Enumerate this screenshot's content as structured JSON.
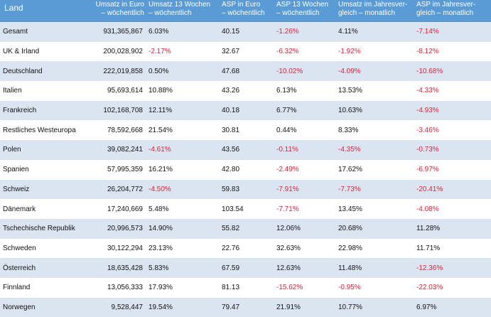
{
  "header": {
    "land": "Land",
    "umsatz": "Umsatz in Euro\n– wöchentlich",
    "umsatz13": "Umsatz 13 Wochen\n– wöchentlich",
    "asp": "ASP in Euro\n– wöchentlich",
    "asp13": "ASP 13 Wochen\n– wöchentlich",
    "umsatz_jv": "Umsatz im Jahresver-\ngleich – monatlich",
    "asp_jv": "ASP im Jahresver-\ngleich – monatlich"
  },
  "colors": {
    "header_bg": "#5b9bd5",
    "band": "#dbe5f1",
    "negative": "#e0203a"
  },
  "rows": [
    {
      "land": "Gesamt",
      "umsatz": "931,365,867",
      "umsatz13": "6.03%",
      "asp": "40.15",
      "asp13": "-1.26%",
      "umsatz_jv": "4.11%",
      "asp_jv": "-7.14%"
    },
    {
      "land": "UK & Irland",
      "umsatz": "200,028,902",
      "umsatz13": "-2.17%",
      "asp": "32.67",
      "asp13": "-6.32%",
      "umsatz_jv": "-1.92%",
      "asp_jv": "-8.12%"
    },
    {
      "land": "Deutschland",
      "umsatz": "222,019,858",
      "umsatz13": "0.50%",
      "asp": "47.68",
      "asp13": "-10.02%",
      "umsatz_jv": "-4.09%",
      "asp_jv": "-10.68%"
    },
    {
      "land": "Italien",
      "umsatz": "95,693,614",
      "umsatz13": "10.88%",
      "asp": "43.26",
      "asp13": "6.13%",
      "umsatz_jv": "13.53%",
      "asp_jv": "-4.33%"
    },
    {
      "land": "Frankreich",
      "umsatz": "102,168,708",
      "umsatz13": "12.11%",
      "asp": "40.18",
      "asp13": "6.77%",
      "umsatz_jv": "10.63%",
      "asp_jv": "-4.93%"
    },
    {
      "land": "Restliches Westeuropa",
      "umsatz": "78,592,668",
      "umsatz13": "21.54%",
      "asp": "30.81",
      "asp13": "0.44%",
      "umsatz_jv": "8.33%",
      "asp_jv": "-3.46%"
    },
    {
      "land": "Polen",
      "umsatz": "39,082,241",
      "umsatz13": "-4.61%",
      "asp": "43.56",
      "asp13": "-0.11%",
      "umsatz_jv": "-4.35%",
      "asp_jv": "-0.73%"
    },
    {
      "land": "Spanien",
      "umsatz": "57,995,359",
      "umsatz13": "16.21%",
      "asp": "42.80",
      "asp13": "-2.49%",
      "umsatz_jv": "17.62%",
      "asp_jv": "-6.97%"
    },
    {
      "land": "Schweiz",
      "umsatz": "26,204,772",
      "umsatz13": "-4.50%",
      "asp": "59.83",
      "asp13": "-7.91%",
      "umsatz_jv": "-7.73%",
      "asp_jv": "-20.41%"
    },
    {
      "land": "Dänemark",
      "umsatz": "17,240,669",
      "umsatz13": "5.48%",
      "asp": "103.54",
      "asp13": "-7.71%",
      "umsatz_jv": "13.45%",
      "asp_jv": "-4.08%"
    },
    {
      "land": "Tschechische Republik",
      "umsatz": "20,996,573",
      "umsatz13": "14.90%",
      "asp": "55.82",
      "asp13": "12.06%",
      "umsatz_jv": "20.68%",
      "asp_jv": "11.28%"
    },
    {
      "land": "Schweden",
      "umsatz": "30,122,294",
      "umsatz13": "23.13%",
      "asp": "22.76",
      "asp13": "32.63%",
      "umsatz_jv": "22.98%",
      "asp_jv": "11.71%"
    },
    {
      "land": "Österreich",
      "umsatz": "18,635,428",
      "umsatz13": "5.83%",
      "asp": "67.59",
      "asp13": "12.63%",
      "umsatz_jv": "11.48%",
      "asp_jv": "-12.36%"
    },
    {
      "land": "Finnland",
      "umsatz": "13,056,333",
      "umsatz13": "17.93%",
      "asp": "81.13",
      "asp13": "-15.62%",
      "umsatz_jv": "-0.95%",
      "asp_jv": "-22.03%"
    },
    {
      "land": "Norwegen",
      "umsatz": "9,528,447",
      "umsatz13": "19.54%",
      "asp": "79.47",
      "asp13": "21.91%",
      "umsatz_jv": "10.77%",
      "asp_jv": "6.97%"
    }
  ]
}
